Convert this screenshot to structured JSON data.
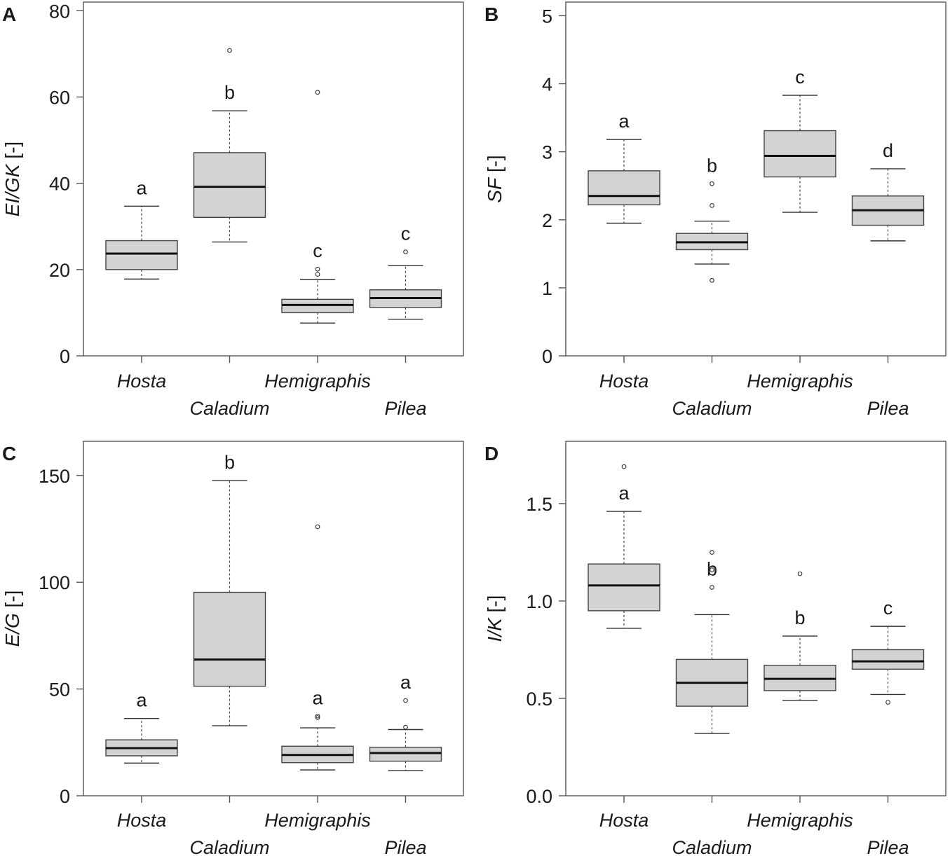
{
  "chart_data": [
    {
      "type": "boxplot",
      "panel": "A",
      "ylabel_italic": "EI/GK",
      "ylabel_unit": " [-]",
      "ylim": [
        0,
        82
      ],
      "yticks": [
        0,
        20,
        40,
        60,
        80
      ],
      "categories": [
        "Hosta",
        "Caladium",
        "Hemigraphis",
        "Pilea"
      ],
      "boxes": [
        {
          "category": "Hosta",
          "whisker_low": 17.8,
          "q1": 20.0,
          "median": 23.7,
          "q3": 26.7,
          "whisker_high": 34.7,
          "outliers": [],
          "letter": "a"
        },
        {
          "category": "Caladium",
          "whisker_low": 26.4,
          "q1": 32.1,
          "median": 39.2,
          "q3": 47.1,
          "whisker_high": 56.8,
          "outliers": [
            70.8
          ],
          "letter": "b"
        },
        {
          "category": "Hemigraphis",
          "whisker_low": 7.6,
          "q1": 10.0,
          "median": 11.8,
          "q3": 13.1,
          "whisker_high": 17.7,
          "outliers": [
            18.9,
            20.1,
            61.1
          ],
          "letter": "c"
        },
        {
          "category": "Pilea",
          "whisker_low": 8.5,
          "q1": 11.2,
          "median": 13.4,
          "q3": 15.3,
          "whisker_high": 20.9,
          "outliers": [
            24.1
          ],
          "letter": "c"
        }
      ]
    },
    {
      "type": "boxplot",
      "panel": "B",
      "ylabel_italic": "SF",
      "ylabel_unit": " [-]",
      "ylim": [
        0,
        5.2
      ],
      "yticks": [
        0,
        1,
        2,
        3,
        4,
        5
      ],
      "categories": [
        "Hosta",
        "Caladium",
        "Hemigraphis",
        "Pilea"
      ],
      "boxes": [
        {
          "category": "Hosta",
          "whisker_low": 1.95,
          "q1": 2.22,
          "median": 2.35,
          "q3": 2.72,
          "whisker_high": 3.18,
          "outliers": [],
          "letter": "a"
        },
        {
          "category": "Caladium",
          "whisker_low": 1.35,
          "q1": 1.56,
          "median": 1.67,
          "q3": 1.8,
          "whisker_high": 1.98,
          "outliers": [
            1.11,
            2.21,
            2.53
          ],
          "letter": "b"
        },
        {
          "category": "Hemigraphis",
          "whisker_low": 2.11,
          "q1": 2.63,
          "median": 2.94,
          "q3": 3.31,
          "whisker_high": 3.83,
          "outliers": [],
          "letter": "c"
        },
        {
          "category": "Pilea",
          "whisker_low": 1.69,
          "q1": 1.92,
          "median": 2.14,
          "q3": 2.35,
          "whisker_high": 2.75,
          "outliers": [],
          "letter": "d"
        }
      ]
    },
    {
      "type": "boxplot",
      "panel": "C",
      "ylabel_italic": "E/G",
      "ylabel_unit": " [-]",
      "ylim": [
        0,
        166
      ],
      "yticks": [
        0,
        50,
        100,
        150
      ],
      "categories": [
        "Hosta",
        "Caladium",
        "Hemigraphis",
        "Pilea"
      ],
      "boxes": [
        {
          "category": "Hosta",
          "whisker_low": 15.3,
          "q1": 18.7,
          "median": 22.3,
          "q3": 26.2,
          "whisker_high": 36.2,
          "outliers": [],
          "letter": "a"
        },
        {
          "category": "Caladium",
          "whisker_low": 32.8,
          "q1": 51.3,
          "median": 63.8,
          "q3": 95.3,
          "whisker_high": 147.6,
          "outliers": [],
          "letter": "b"
        },
        {
          "category": "Hemigraphis",
          "whisker_low": 12.1,
          "q1": 15.5,
          "median": 19.1,
          "q3": 23.2,
          "whisker_high": 31.8,
          "outliers": [
            36.6,
            37.3,
            126.0
          ],
          "letter": "a"
        },
        {
          "category": "Pilea",
          "whisker_low": 11.8,
          "q1": 16.2,
          "median": 20.0,
          "q3": 22.7,
          "whisker_high": 31.0,
          "outliers": [
            32.1,
            44.6
          ],
          "letter": "a"
        }
      ]
    },
    {
      "type": "boxplot",
      "panel": "D",
      "ylabel_italic": "I/K",
      "ylabel_unit": " [-]",
      "ylim": [
        0,
        1.82
      ],
      "yticks": [
        0.0,
        0.5,
        1.0,
        1.5
      ],
      "tick_decimals": 1,
      "categories": [
        "Hosta",
        "Caladium",
        "Hemigraphis",
        "Pilea"
      ],
      "boxes": [
        {
          "category": "Hosta",
          "whisker_low": 0.86,
          "q1": 0.95,
          "median": 1.08,
          "q3": 1.19,
          "whisker_high": 1.46,
          "outliers": [
            1.69
          ],
          "letter": "a"
        },
        {
          "category": "Caladium",
          "whisker_low": 0.32,
          "q1": 0.46,
          "median": 0.58,
          "q3": 0.7,
          "whisker_high": 0.93,
          "outliers": [
            1.07,
            1.16,
            1.25
          ],
          "letter": "b"
        },
        {
          "category": "Hemigraphis",
          "whisker_low": 0.49,
          "q1": 0.54,
          "median": 0.6,
          "q3": 0.67,
          "whisker_high": 0.82,
          "outliers": [
            1.14
          ],
          "letter": "b"
        },
        {
          "category": "Pilea",
          "whisker_low": 0.52,
          "q1": 0.65,
          "median": 0.69,
          "q3": 0.75,
          "whisker_high": 0.87,
          "outliers": [
            0.48
          ],
          "letter": "c"
        }
      ]
    }
  ]
}
